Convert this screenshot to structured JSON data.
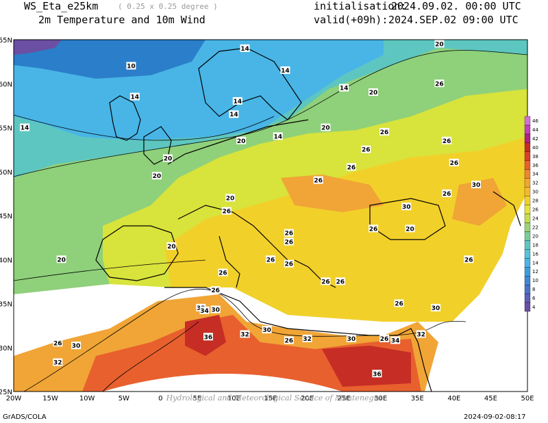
{
  "header": {
    "model": "WS_Eta_e25km",
    "resolution": "( 0.25 x 0.25 degree )",
    "field": "2m Temperature and 10m Wind",
    "init_label": "initialisation:",
    "init_value": "2024.09.02. 00:00 UTC",
    "valid_label": "valid(+09h):",
    "valid_value": "2024.SEP.02 09:00 UTC"
  },
  "footer": {
    "software": "GrADS/COLA",
    "timestamp": "2024-09-02-08:17",
    "watermark": "Hydrological and Meteorological Service of Montenegro"
  },
  "map": {
    "lon_ticks": [
      "20W",
      "15W",
      "10W",
      "5W",
      "0",
      "5E",
      "10E",
      "15E",
      "20E",
      "25E",
      "30E",
      "35E",
      "40E",
      "45E",
      "50E"
    ],
    "lat_ticks": [
      "25N",
      "30N",
      "35N",
      "40N",
      "45N",
      "50N",
      "55N",
      "60N",
      "65N"
    ],
    "colors": {
      "sea_cold": "#2b7ec9",
      "cold": "#48b5e6",
      "cool": "#5ec6c0",
      "mild": "#8fd07a",
      "warm": "#d8e33c",
      "warmer": "#f2d02a",
      "hot": "#f0a536",
      "hotter": "#e8602e",
      "hottest": "#c62d24"
    }
  },
  "contour_labels": [
    {
      "text": "14",
      "lon": 11.5,
      "lat": 64.0
    },
    {
      "text": "10",
      "lon": -4.0,
      "lat": 62.0
    },
    {
      "text": "14",
      "lon": 17.0,
      "lat": 61.5
    },
    {
      "text": "14",
      "lon": -3.5,
      "lat": 58.5
    },
    {
      "text": "14",
      "lon": 10.5,
      "lat": 58.0
    },
    {
      "text": "14",
      "lon": 25.0,
      "lat": 59.5
    },
    {
      "text": "20",
      "lon": 29.0,
      "lat": 59.0
    },
    {
      "text": "20",
      "lon": 38.0,
      "lat": 64.5
    },
    {
      "text": "26",
      "lon": 38.0,
      "lat": 60.0
    },
    {
      "text": "14",
      "lon": 10.0,
      "lat": 56.5
    },
    {
      "text": "14",
      "lon": -18.5,
      "lat": 55.0
    },
    {
      "text": "20",
      "lon": 11.0,
      "lat": 53.5
    },
    {
      "text": "14",
      "lon": 16.0,
      "lat": 54.0
    },
    {
      "text": "20",
      "lon": 22.5,
      "lat": 55.0
    },
    {
      "text": "26",
      "lon": 30.5,
      "lat": 54.5
    },
    {
      "text": "26",
      "lon": 39.0,
      "lat": 53.5
    },
    {
      "text": "26",
      "lon": 28.0,
      "lat": 52.5
    },
    {
      "text": "20",
      "lon": 1.0,
      "lat": 51.5
    },
    {
      "text": "26",
      "lon": 26.0,
      "lat": 50.5
    },
    {
      "text": "26",
      "lon": 40.0,
      "lat": 51.0
    },
    {
      "text": "20",
      "lon": -0.5,
      "lat": 49.5
    },
    {
      "text": "26",
      "lon": 21.5,
      "lat": 49.0
    },
    {
      "text": "30",
      "lon": 43.0,
      "lat": 48.5
    },
    {
      "text": "20",
      "lon": 9.5,
      "lat": 47.0
    },
    {
      "text": "26",
      "lon": 9.0,
      "lat": 45.5
    },
    {
      "text": "30",
      "lon": 33.5,
      "lat": 46.0
    },
    {
      "text": "26",
      "lon": 39.0,
      "lat": 47.5
    },
    {
      "text": "20",
      "lon": 34.0,
      "lat": 43.5
    },
    {
      "text": "26",
      "lon": 29.0,
      "lat": 43.5
    },
    {
      "text": "26",
      "lon": 17.5,
      "lat": 43.0
    },
    {
      "text": "26",
      "lon": 17.5,
      "lat": 42.0
    },
    {
      "text": "20",
      "lon": 1.5,
      "lat": 41.5
    },
    {
      "text": "20",
      "lon": -13.5,
      "lat": 40.0
    },
    {
      "text": "26",
      "lon": 15.0,
      "lat": 40.0
    },
    {
      "text": "26",
      "lon": 17.5,
      "lat": 39.5
    },
    {
      "text": "26",
      "lon": 42.0,
      "lat": 40.0
    },
    {
      "text": "26",
      "lon": 8.5,
      "lat": 38.5
    },
    {
      "text": "26",
      "lon": 22.5,
      "lat": 37.5
    },
    {
      "text": "26",
      "lon": 24.5,
      "lat": 37.5
    },
    {
      "text": "26",
      "lon": 7.5,
      "lat": 36.5
    },
    {
      "text": "26",
      "lon": 32.5,
      "lat": 35.0
    },
    {
      "text": "30",
      "lon": 37.5,
      "lat": 34.5
    },
    {
      "text": "32",
      "lon": 5.5,
      "lat": 34.5
    },
    {
      "text": "34",
      "lon": 6.0,
      "lat": 34.2
    },
    {
      "text": "30",
      "lon": 7.5,
      "lat": 34.3
    },
    {
      "text": "30",
      "lon": 14.5,
      "lat": 32.0
    },
    {
      "text": "32",
      "lon": 11.5,
      "lat": 31.5
    },
    {
      "text": "36",
      "lon": 6.5,
      "lat": 31.2
    },
    {
      "text": "26",
      "lon": -14.0,
      "lat": 30.5
    },
    {
      "text": "30",
      "lon": -11.5,
      "lat": 30.2
    },
    {
      "text": "26",
      "lon": 17.5,
      "lat": 30.8
    },
    {
      "text": "32",
      "lon": 20.0,
      "lat": 31.0
    },
    {
      "text": "30",
      "lon": 26.0,
      "lat": 31.0
    },
    {
      "text": "26",
      "lon": 30.5,
      "lat": 31.0
    },
    {
      "text": "34",
      "lon": 32.0,
      "lat": 30.8
    },
    {
      "text": "32",
      "lon": 35.5,
      "lat": 31.5
    },
    {
      "text": "32",
      "lon": -14.0,
      "lat": 28.3
    },
    {
      "text": "36",
      "lon": 29.5,
      "lat": 27.0
    }
  ],
  "colorbar": {
    "labels": [
      "4",
      "6",
      "8",
      "10",
      "12",
      "14",
      "16",
      "18",
      "20",
      "22",
      "24",
      "26",
      "28",
      "30",
      "32",
      "34",
      "36",
      "38",
      "40",
      "42",
      "44",
      "46"
    ],
    "colors": [
      "#6a4fa3",
      "#5a5fb7",
      "#4a73c6",
      "#3f88d2",
      "#3f9cdc",
      "#48b5e6",
      "#55c2d8",
      "#5ec6c0",
      "#79cc9a",
      "#9bd47a",
      "#c4de4a",
      "#e6e33a",
      "#f2d02a",
      "#f2bb2e",
      "#f0a536",
      "#ec8632",
      "#e8602e",
      "#d8402a",
      "#c62d24",
      "#b02088",
      "#c040c0",
      "#d270d8"
    ]
  }
}
